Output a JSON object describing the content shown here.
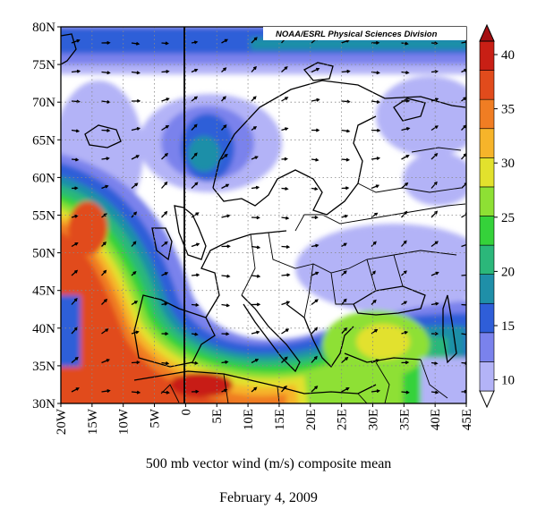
{
  "credit": "NOAA/ESRL Physical Sciences Division",
  "caption": {
    "title": "500 mb vector wind (m/s) composite mean",
    "date": "February 4, 2009"
  },
  "axes": {
    "lat_labels": [
      "80N",
      "75N",
      "70N",
      "65N",
      "60N",
      "55N",
      "50N",
      "45N",
      "40N",
      "35N",
      "30N"
    ],
    "lon_labels": [
      "20W",
      "15W",
      "10W",
      "5W",
      "0",
      "5E",
      "10E",
      "15E",
      "20E",
      "25E",
      "30E",
      "35E",
      "40E",
      "45E"
    ]
  },
  "colorbar": {
    "ticks": [
      "40",
      "35",
      "30",
      "25",
      "20",
      "15",
      "10"
    ],
    "colors": [
      "#ffffff",
      "#b3b3f7",
      "#7a82ec",
      "#2f5ed8",
      "#1f8fa8",
      "#2bb77a",
      "#35d23a",
      "#8ee034",
      "#e2e12d",
      "#f6b42a",
      "#f07d23",
      "#e14b1c",
      "#c81f15",
      "#a50f12"
    ]
  }
}
